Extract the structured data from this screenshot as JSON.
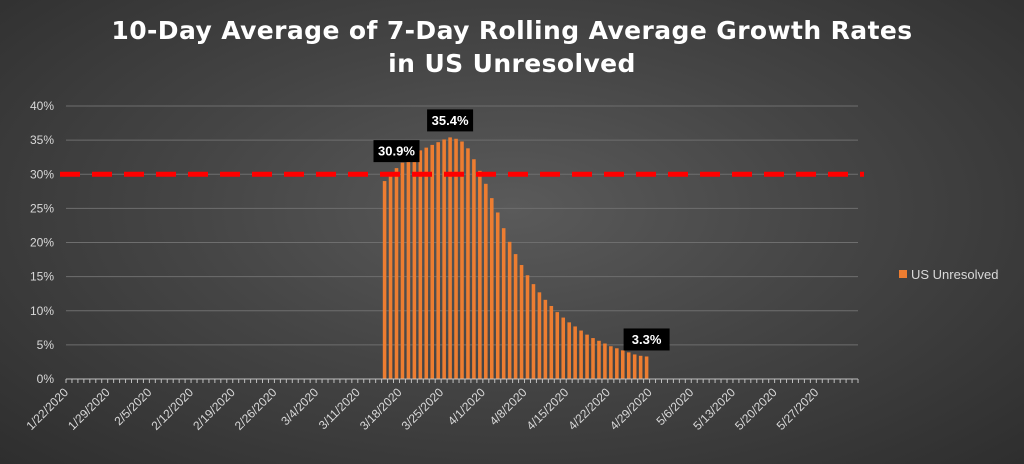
{
  "chart_data": {
    "type": "bar",
    "title_lines": [
      "10-Day Average of 7-Day Rolling Average Growth Rates",
      "in US Unresolved"
    ],
    "x_start": "1/22/2020",
    "x_tick_labels": [
      "1/22/2020",
      "1/29/2020",
      "2/5/2020",
      "2/12/2020",
      "2/19/2020",
      "2/26/2020",
      "3/4/2020",
      "3/11/2020",
      "3/18/2020",
      "3/25/2020",
      "4/1/2020",
      "4/8/2020",
      "4/15/2020",
      "4/22/2020",
      "4/29/2020",
      "5/6/2020",
      "5/13/2020",
      "5/20/2020",
      "5/27/2020"
    ],
    "y_tick_labels": [
      "0%",
      "5%",
      "10%",
      "15%",
      "20%",
      "25%",
      "30%",
      "35%",
      "40%"
    ],
    "ylim": [
      0,
      0.4
    ],
    "grid": true,
    "legend_position": "right",
    "series": [
      {
        "name": "US Unresolved",
        "color": "#ed7d31",
        "x": [
          "3/15/2020",
          "3/16/2020",
          "3/17/2020",
          "3/18/2020",
          "3/19/2020",
          "3/20/2020",
          "3/21/2020",
          "3/22/2020",
          "3/23/2020",
          "3/24/2020",
          "3/25/2020",
          "3/26/2020",
          "3/27/2020",
          "3/28/2020",
          "3/29/2020",
          "3/30/2020",
          "3/31/2020",
          "4/1/2020",
          "4/2/2020",
          "4/3/2020",
          "4/4/2020",
          "4/5/2020",
          "4/6/2020",
          "4/7/2020",
          "4/8/2020",
          "4/9/2020",
          "4/10/2020",
          "4/11/2020",
          "4/12/2020",
          "4/13/2020",
          "4/14/2020",
          "4/15/2020",
          "4/16/2020",
          "4/17/2020",
          "4/18/2020",
          "4/19/2020",
          "4/20/2020",
          "4/21/2020",
          "4/22/2020",
          "4/23/2020",
          "4/24/2020",
          "4/25/2020",
          "4/26/2020",
          "4/27/2020",
          "4/28/2020"
        ],
        "values": [
          0.29,
          0.3,
          0.309,
          0.317,
          0.324,
          0.33,
          0.335,
          0.339,
          0.343,
          0.347,
          0.351,
          0.354,
          0.352,
          0.348,
          0.338,
          0.322,
          0.305,
          0.286,
          0.265,
          0.244,
          0.221,
          0.201,
          0.183,
          0.167,
          0.152,
          0.139,
          0.127,
          0.116,
          0.107,
          0.098,
          0.09,
          0.083,
          0.077,
          0.071,
          0.065,
          0.06,
          0.056,
          0.052,
          0.048,
          0.045,
          0.042,
          0.039,
          0.036,
          0.034,
          0.033
        ]
      }
    ],
    "data_labels": [
      {
        "x": "3/17/2020",
        "text": "30.9%"
      },
      {
        "x": "3/26/2020",
        "text": "35.4%"
      },
      {
        "x": "4/28/2020",
        "text": "3.3%"
      }
    ],
    "reference_line": {
      "y": 0.3,
      "color": "#ff0000",
      "style": "dashed"
    }
  }
}
